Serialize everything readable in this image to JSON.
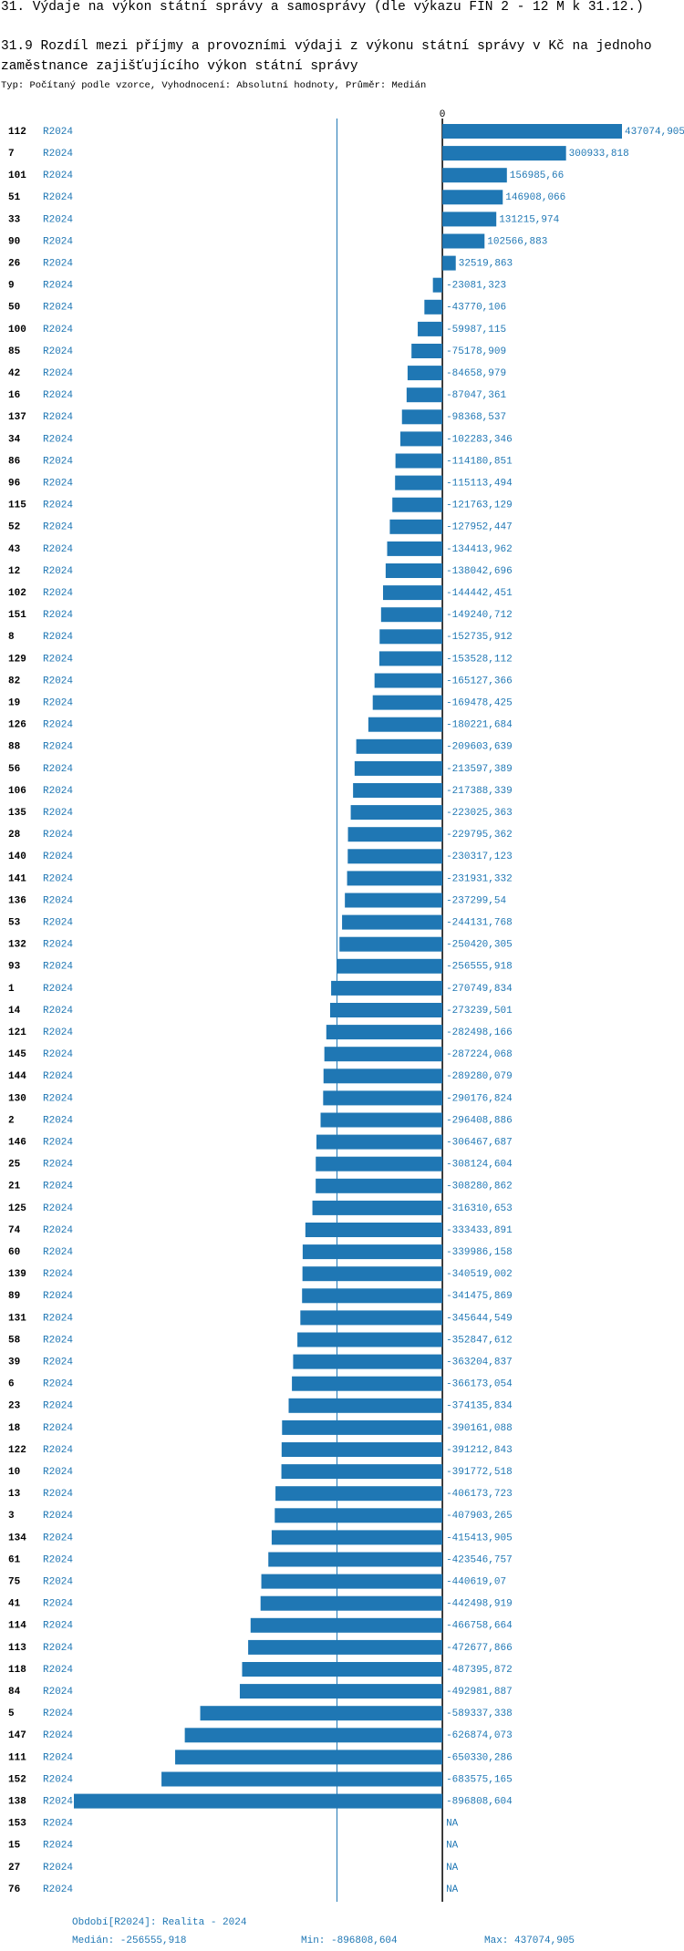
{
  "chart_data": {
    "type": "bar",
    "orientation": "horizontal",
    "title": "31. Výdaje na výkon státní správy a samosprávy (dle výkazu FIN 2 - 12 M k 31.12.)",
    "subtitle": "31.9 Rozdíl mezi příjmy a provozními výdaji z výkonu státní správy v Kč na jednoho zaměstnance zajišťujícího výkon státní správy",
    "note": "Typ: Počítaný podle vzorce, Vyhodnocení: Absolutní hodnoty, Průměr: Medián",
    "categories": [
      "112",
      "7",
      "101",
      "51",
      "33",
      "90",
      "26",
      "9",
      "50",
      "100",
      "85",
      "42",
      "16",
      "137",
      "34",
      "86",
      "96",
      "115",
      "52",
      "43",
      "12",
      "102",
      "151",
      "8",
      "129",
      "82",
      "19",
      "126",
      "88",
      "56",
      "106",
      "135",
      "28",
      "140",
      "141",
      "136",
      "53",
      "132",
      "93",
      "1",
      "14",
      "121",
      "145",
      "144",
      "130",
      "2",
      "146",
      "25",
      "21",
      "125",
      "74",
      "60",
      "139",
      "89",
      "131",
      "58",
      "39",
      "6",
      "23",
      "18",
      "122",
      "10",
      "13",
      "3",
      "134",
      "61",
      "75",
      "41",
      "114",
      "113",
      "118",
      "84",
      "5",
      "147",
      "111",
      "152",
      "138",
      "153",
      "15",
      "27",
      "76"
    ],
    "series": [
      {
        "name": "R2024",
        "color": "#1f77b4",
        "values": [
          437074.905,
          300933.818,
          156985.66,
          146908.066,
          131215.974,
          102566.883,
          32519.863,
          -23081.323,
          -43770.106,
          -59987.115,
          -75178.909,
          -84658.979,
          -87047.361,
          -98368.537,
          -102283.346,
          -114180.851,
          -115113.494,
          -121763.129,
          -127952.447,
          -134413.962,
          -138042.696,
          -144442.451,
          -149240.712,
          -152735.912,
          -153528.112,
          -165127.366,
          -169478.425,
          -180221.684,
          -209603.639,
          -213597.389,
          -217388.339,
          -223025.363,
          -229795.362,
          -230317.123,
          -231931.332,
          -237299.54,
          -244131.768,
          -250420.305,
          -256555.918,
          -270749.834,
          -273239.501,
          -282498.166,
          -287224.068,
          -289280.079,
          -290176.824,
          -296408.886,
          -306467.687,
          -308124.604,
          -308280.862,
          -316310.653,
          -333433.891,
          -339986.158,
          -340519.002,
          -341475.869,
          -345644.549,
          -352847.612,
          -363204.837,
          -366173.054,
          -374135.834,
          -390161.088,
          -391212.843,
          -391772.518,
          -406173.723,
          -407903.265,
          -415413.905,
          -423546.757,
          -440619.07,
          -442498.919,
          -466758.664,
          -472677.866,
          -487395.872,
          -492981.887,
          -589337.338,
          -626874.073,
          -650330.286,
          -683575.165,
          -896808.604,
          null,
          null,
          null,
          null
        ],
        "value_labels": [
          "437074,905",
          "300933,818",
          "156985,66",
          "146908,066",
          "131215,974",
          "102566,883",
          "32519,863",
          "-23081,323",
          "-43770,106",
          "-59987,115",
          "-75178,909",
          "-84658,979",
          "-87047,361",
          "-98368,537",
          "-102283,346",
          "-114180,851",
          "-115113,494",
          "-121763,129",
          "-127952,447",
          "-134413,962",
          "-138042,696",
          "-144442,451",
          "-149240,712",
          "-152735,912",
          "-153528,112",
          "-165127,366",
          "-169478,425",
          "-180221,684",
          "-209603,639",
          "-213597,389",
          "-217388,339",
          "-223025,363",
          "-229795,362",
          "-230317,123",
          "-231931,332",
          "-237299,54",
          "-244131,768",
          "-250420,305",
          "-256555,918",
          "-270749,834",
          "-273239,501",
          "-282498,166",
          "-287224,068",
          "-289280,079",
          "-290176,824",
          "-296408,886",
          "-306467,687",
          "-308124,604",
          "-308280,862",
          "-316310,653",
          "-333433,891",
          "-339986,158",
          "-340519,002",
          "-341475,869",
          "-345644,549",
          "-352847,612",
          "-363204,837",
          "-366173,054",
          "-374135,834",
          "-390161,088",
          "-391212,843",
          "-391772,518",
          "-406173,723",
          "-407903,265",
          "-415413,905",
          "-423546,757",
          "-440619,07",
          "-442498,919",
          "-466758,664",
          "-472677,866",
          "-487395,872",
          "-492981,887",
          "-589337,338",
          "-626874,073",
          "-650330,286",
          "-683575,165",
          "-896808,604",
          "NA",
          "NA",
          "NA",
          "NA"
        ]
      }
    ],
    "xlim": [
      -896808.604,
      437074.905
    ],
    "xticks": [
      0
    ],
    "median": -256555.918,
    "footer": {
      "period": "Období[R2024]: Realita - 2024",
      "median": "Medián: -256555,918",
      "min": "Min: -896808,604",
      "max": "Max: 437074,905"
    }
  }
}
